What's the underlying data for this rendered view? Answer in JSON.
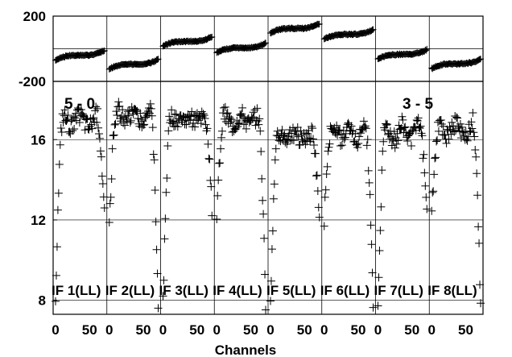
{
  "chart_data": {
    "type": "scatter",
    "marker": "plus",
    "xlabel": "Channels",
    "x_range": [
      0,
      63
    ],
    "x_tick_labels": [
      "0",
      "50"
    ],
    "overlay_labels": [
      "5 - 0",
      "3 - 5"
    ],
    "phase_panel": {
      "ylim": [
        -200,
        200
      ],
      "ytick_labels": [
        "200",
        "-200"
      ]
    },
    "amp_panel": {
      "ylim": [
        7.3,
        18.9
      ],
      "ytick_labels": [
        "16",
        "12",
        "8"
      ]
    },
    "panels": [
      {
        "label": "IF 1(LL)",
        "phase_center": -40,
        "phase_swing": 30,
        "amp_peak": 17.2,
        "amp_edge_start": 8.2,
        "amp_edge_end": 12.2,
        "amp_dip": 16.5
      },
      {
        "label": "IF 2(LL)",
        "phase_center": -95,
        "phase_swing": 30,
        "amp_peak": 17.5,
        "amp_edge_start": 11.8,
        "amp_edge_end": 8.0,
        "amp_dip": 16.8
      },
      {
        "label": "IF 3(LL)",
        "phase_center": 45,
        "phase_swing": 30,
        "amp_peak": 17.2,
        "amp_edge_start": 7.8,
        "amp_edge_end": 12.5,
        "amp_dip": 16.8
      },
      {
        "label": "IF 4(LL)",
        "phase_center": 5,
        "phase_swing": 30,
        "amp_peak": 17.2,
        "amp_edge_start": 12.2,
        "amp_edge_end": 7.7,
        "amp_dip": 16.6
      },
      {
        "label": "IF 5(LL)",
        "phase_center": 125,
        "phase_swing": 30,
        "amp_peak": 16.3,
        "amp_edge_start": 7.8,
        "amp_edge_end": 12.2,
        "amp_dip": 15.9
      },
      {
        "label": "IF 6(LL)",
        "phase_center": 88,
        "phase_swing": 30,
        "amp_peak": 16.6,
        "amp_edge_start": 12.1,
        "amp_edge_end": 7.6,
        "amp_dip": 15.9
      },
      {
        "label": "IF 7(LL)",
        "phase_center": -35,
        "phase_swing": 30,
        "amp_peak": 16.8,
        "amp_edge_start": 7.8,
        "amp_edge_end": 12.4,
        "amp_dip": 15.8
      },
      {
        "label": "IF 8(LL)",
        "phase_center": -92,
        "phase_swing": 30,
        "amp_peak": 16.9,
        "amp_edge_start": 12.2,
        "amp_edge_end": 7.6,
        "amp_dip": 16.0
      }
    ],
    "grid": true
  }
}
